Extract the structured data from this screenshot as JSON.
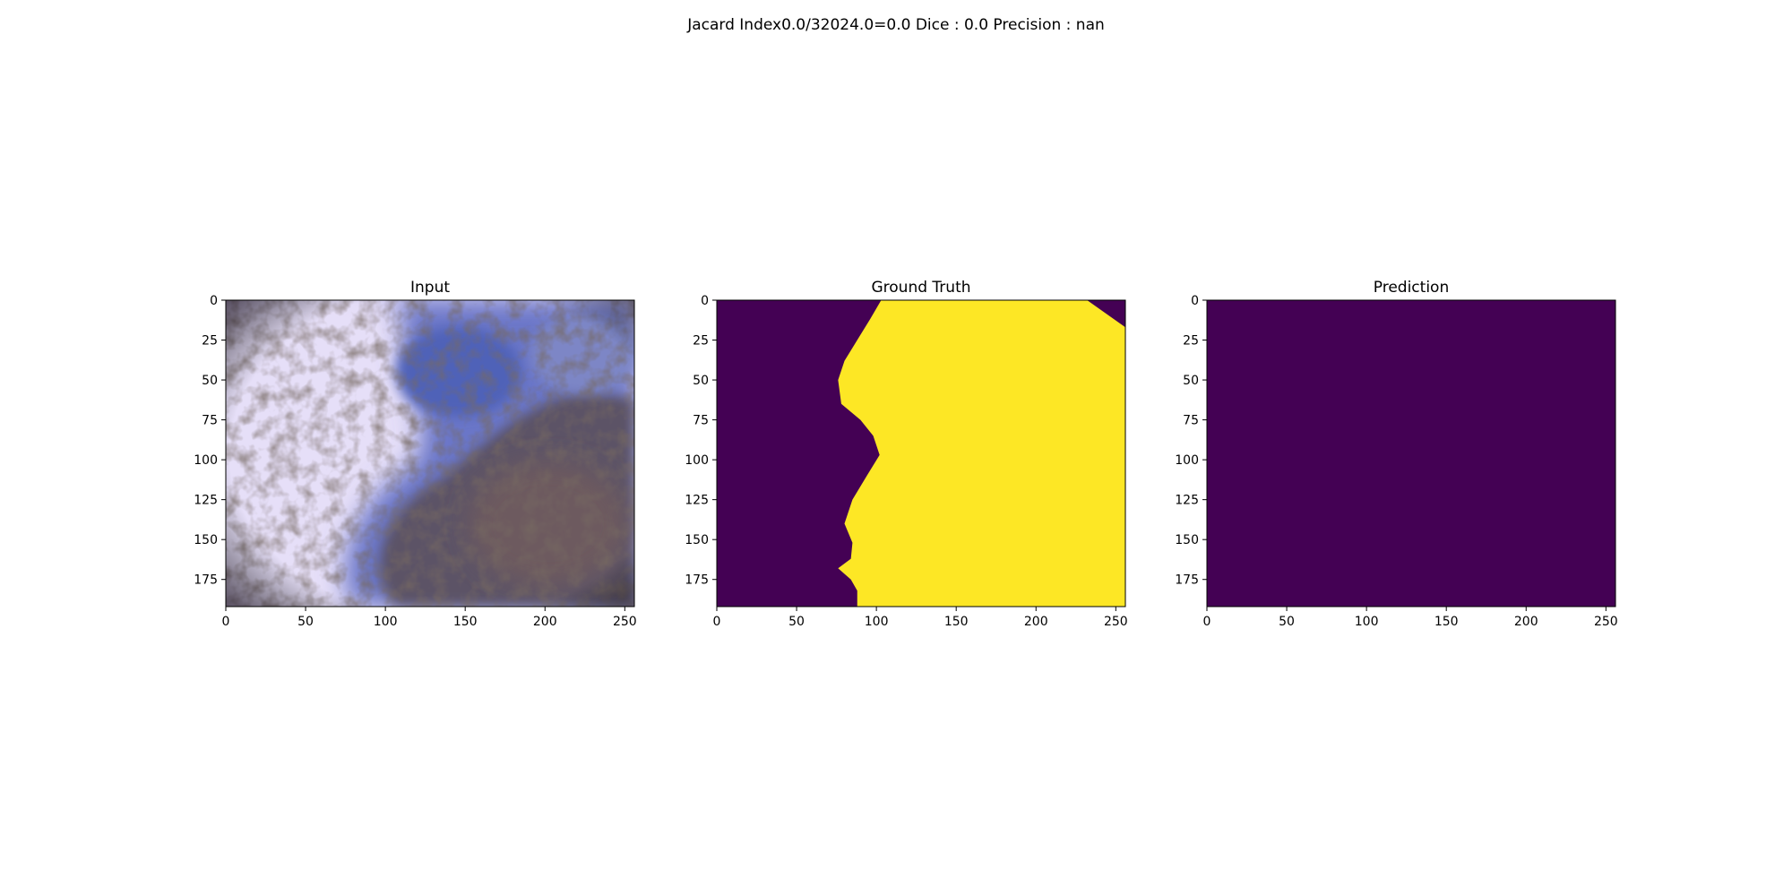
{
  "suptitle": "Jacard Index0.0/32024.0=0.0 Dice : 0.0 Precision : nan",
  "colors": {
    "background": "#ffffff",
    "viridis_low": "#440154",
    "viridis_high": "#fde725",
    "axis": "#000000"
  },
  "chart_data": [
    {
      "type": "heatmap",
      "title": "Input",
      "content": "RGB dermoscopy image of a skin lesion (pale lilac skin on the left, blue-grey and brown pigmented lesion on the right)",
      "xlim": [
        0,
        256
      ],
      "ylim": [
        192,
        0
      ],
      "xticks": [
        0,
        50,
        100,
        150,
        200,
        250
      ],
      "yticks": [
        0,
        25,
        50,
        75,
        100,
        125,
        150,
        175
      ],
      "xlabel": "",
      "ylabel": ""
    },
    {
      "type": "heatmap",
      "title": "Ground Truth",
      "colormap": "viridis",
      "values": [
        0,
        1
      ],
      "boundary_x_at_rows": [
        {
          "y": 0,
          "x": 103
        },
        {
          "y": 12,
          "x": 96
        },
        {
          "y": 25,
          "x": 88
        },
        {
          "y": 38,
          "x": 80
        },
        {
          "y": 50,
          "x": 76
        },
        {
          "y": 65,
          "x": 78
        },
        {
          "y": 75,
          "x": 90
        },
        {
          "y": 85,
          "x": 98
        },
        {
          "y": 97,
          "x": 102
        },
        {
          "y": 110,
          "x": 94
        },
        {
          "y": 125,
          "x": 85
        },
        {
          "y": 140,
          "x": 80
        },
        {
          "y": 152,
          "x": 85
        },
        {
          "y": 162,
          "x": 84
        },
        {
          "y": 168,
          "x": 76
        },
        {
          "y": 175,
          "x": 84
        },
        {
          "y": 182,
          "x": 88
        },
        {
          "y": 192,
          "x": 88
        }
      ],
      "top_right_background_corner": {
        "x_at_top": 232,
        "y_at_right": 17
      },
      "xlim": [
        0,
        256
      ],
      "ylim": [
        192,
        0
      ],
      "xticks": [
        0,
        50,
        100,
        150,
        200,
        250
      ],
      "yticks": [
        0,
        25,
        50,
        75,
        100,
        125,
        150,
        175
      ],
      "xlabel": "",
      "ylabel": ""
    },
    {
      "type": "heatmap",
      "title": "Prediction",
      "colormap": "viridis",
      "values": [
        0
      ],
      "xlim": [
        0,
        256
      ],
      "ylim": [
        192,
        0
      ],
      "xticks": [
        0,
        50,
        100,
        150,
        200,
        250
      ],
      "yticks": [
        0,
        25,
        50,
        75,
        100,
        125,
        150,
        175
      ],
      "xlabel": "",
      "ylabel": ""
    }
  ]
}
